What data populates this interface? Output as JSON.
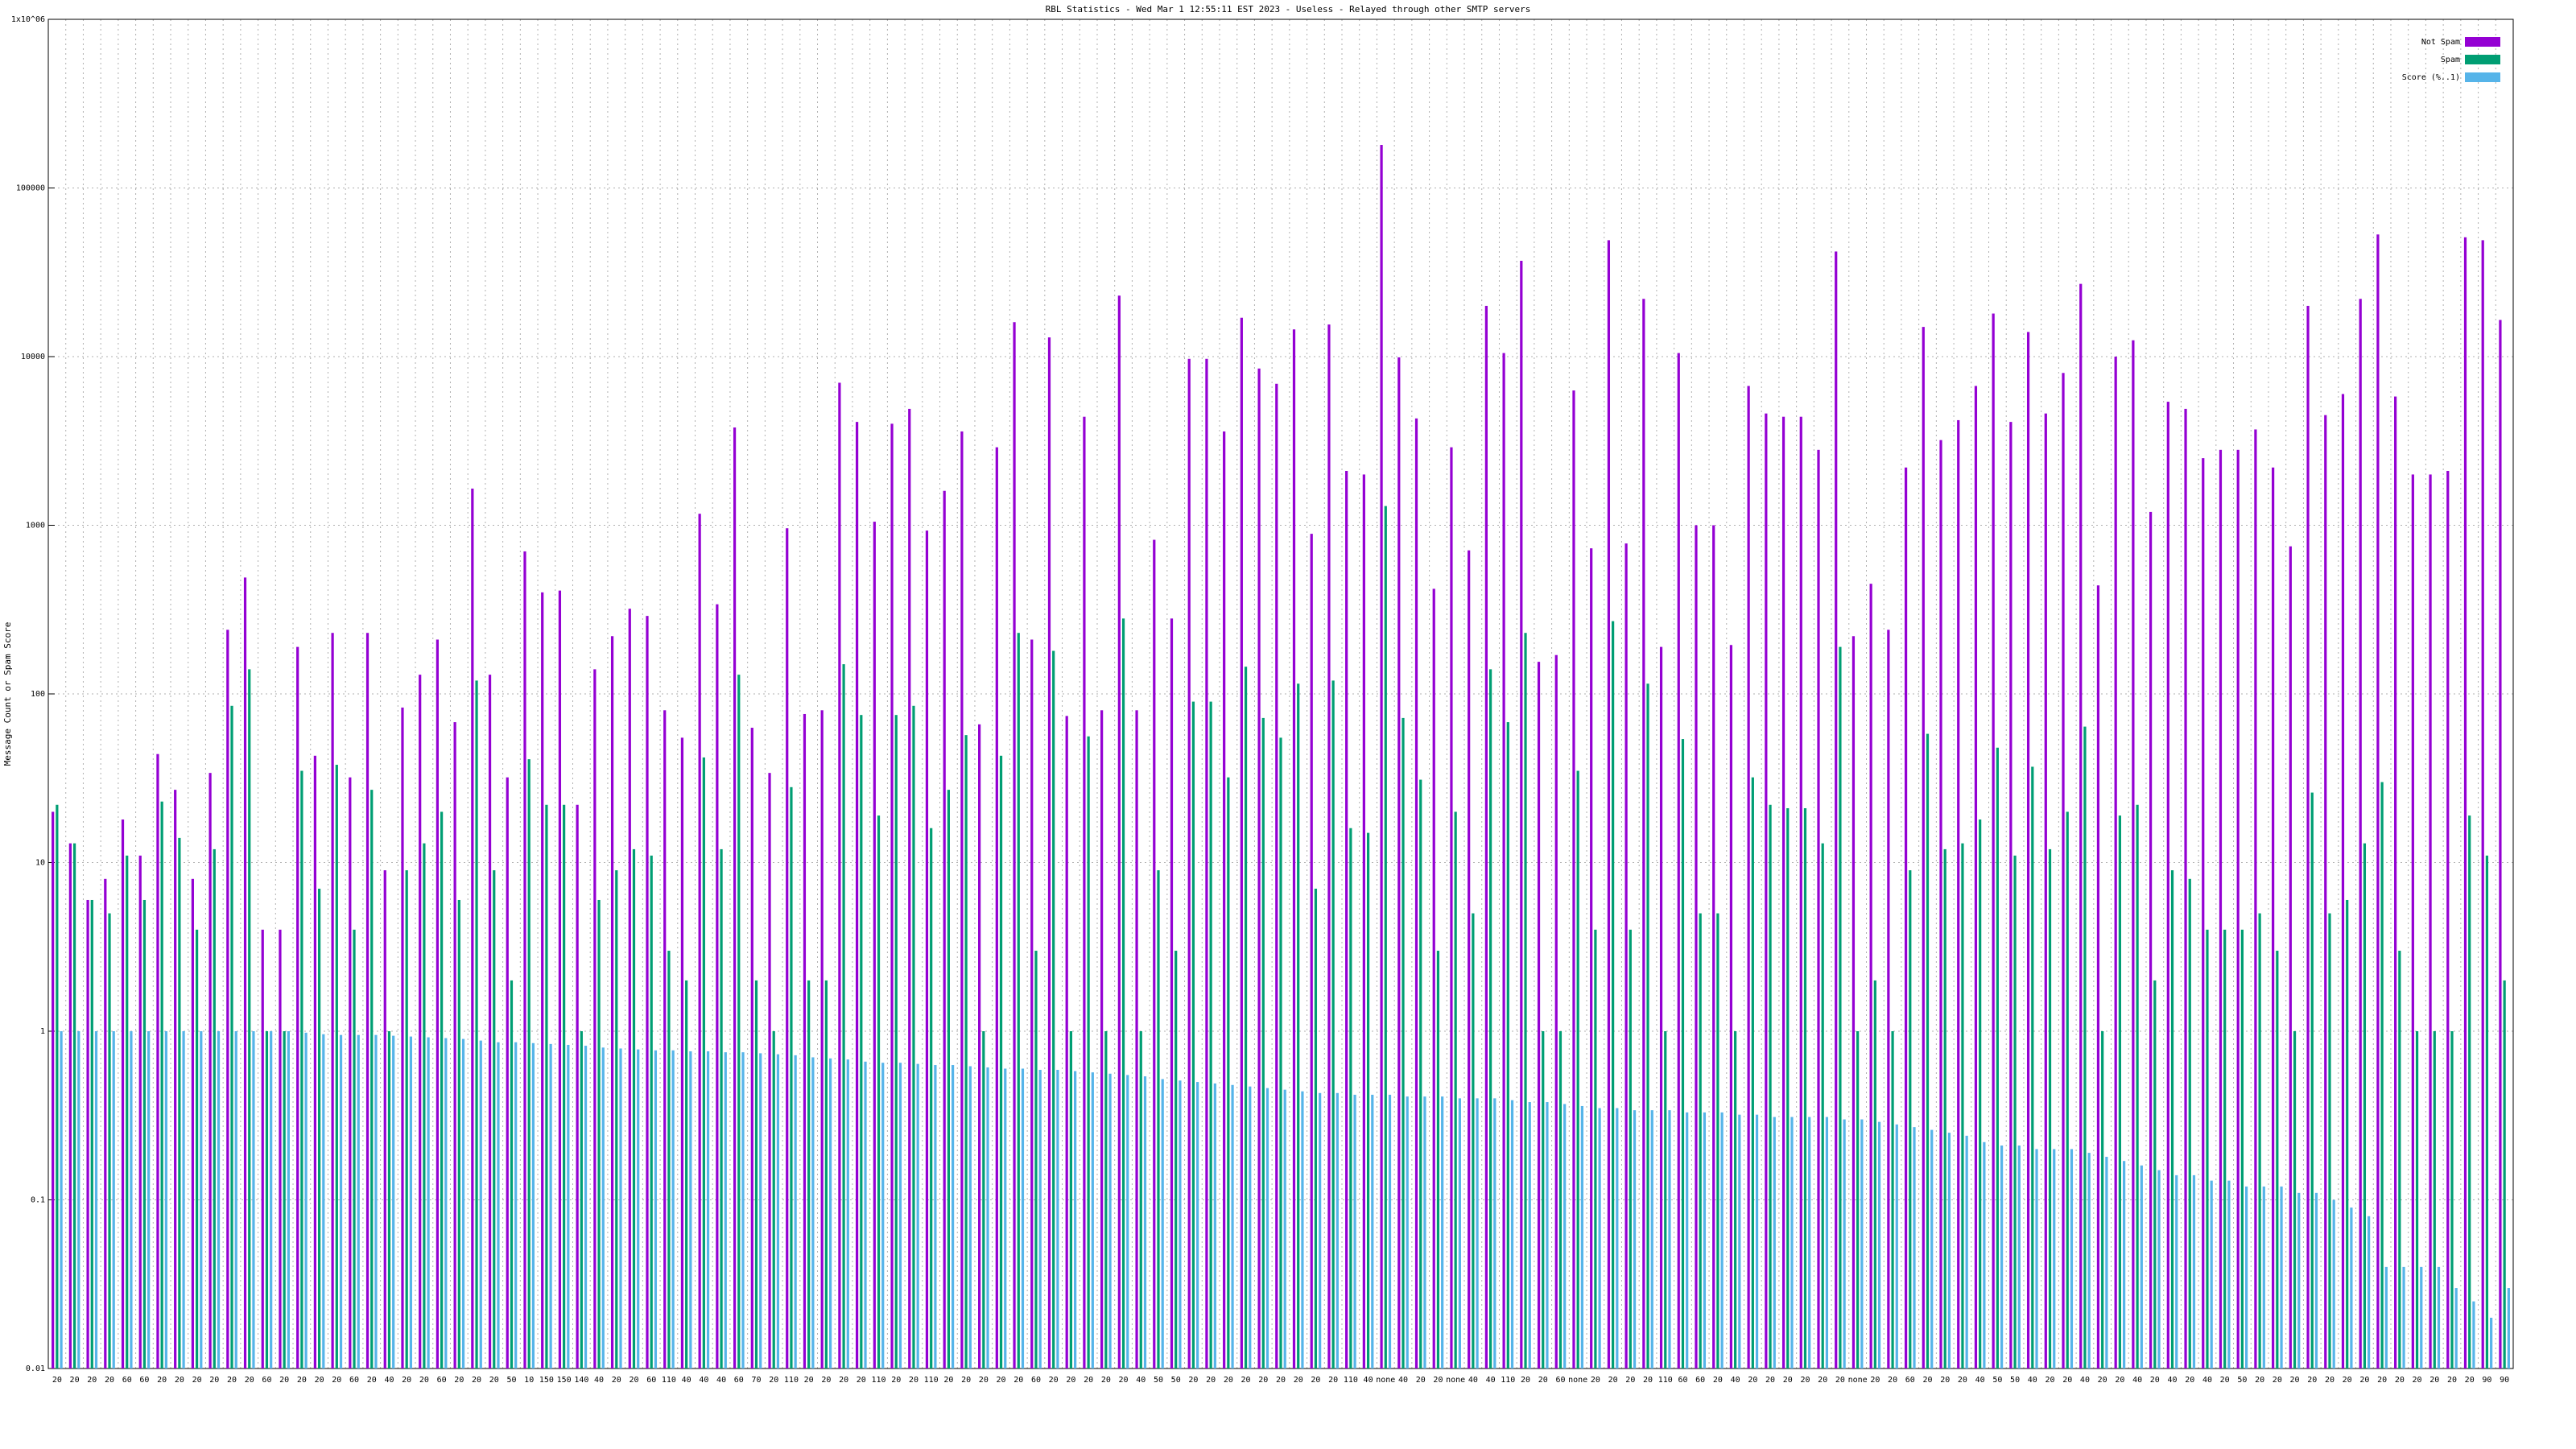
{
  "chart_data": {
    "type": "bar",
    "title": "RBL Statistics - Wed Mar  1 12:55:11 EST 2023 - Useless - Relayed through other SMTP servers",
    "y_label": "Message Count or Spam Score",
    "log_scale": true,
    "grid": true,
    "legend": "top-right",
    "ylim": [
      0.01,
      1000000
    ],
    "yticks": [
      0.01,
      0.1,
      1,
      10,
      100,
      1000,
      10000,
      100000,
      {
        "value": 1000000,
        "label": "1x10^06"
      }
    ],
    "categories": [
      "20",
      "20",
      "20",
      "20",
      "60",
      "60",
      "20",
      "20",
      "20",
      "20",
      "20",
      "20",
      "60",
      "20",
      "20",
      "20",
      "20",
      "60",
      "20",
      "40",
      "20",
      "20",
      "60",
      "20",
      "20",
      "20",
      "50",
      "10",
      "150",
      "150",
      "140",
      "40",
      "20",
      "20",
      "60",
      "110",
      "40",
      "40",
      "40",
      "60",
      "70",
      "20",
      "110",
      "20",
      "20",
      "20",
      "20",
      "110",
      "20",
      "20",
      "110",
      "20",
      "20",
      "20",
      "20",
      "20",
      "60",
      "20",
      "20",
      "20",
      "20",
      "20",
      "40",
      "50",
      "50",
      "20",
      "20",
      "20",
      "20",
      "20",
      "20",
      "20",
      "20",
      "20",
      "110",
      "40",
      "none",
      "40",
      "20",
      "20",
      "none",
      "40",
      "40",
      "110",
      "20",
      "20",
      "60",
      "none",
      "20",
      "20",
      "20",
      "20",
      "110",
      "60",
      "60",
      "20",
      "40",
      "20",
      "20",
      "20",
      "20",
      "20",
      "20",
      "none",
      "20",
      "20",
      "60",
      "20",
      "20",
      "20",
      "40",
      "50",
      "50",
      "40",
      "20",
      "20",
      "40",
      "20",
      "20",
      "40",
      "20",
      "40",
      "20",
      "40",
      "20",
      "50",
      "20",
      "20",
      "20",
      "20",
      "20",
      "20",
      "20",
      "20",
      "20",
      "20",
      "20",
      "20",
      "20",
      "90",
      "90"
    ],
    "series": [
      {
        "name": "Not Spam",
        "color": "#9400d3",
        "values": [
          20,
          13,
          6,
          8,
          18,
          11,
          44,
          27,
          8,
          34,
          240,
          490,
          4,
          4,
          190,
          43,
          230,
          32,
          230,
          9,
          83,
          130,
          210,
          68,
          1650,
          130,
          32,
          700,
          400,
          410,
          22,
          140,
          220,
          320,
          290,
          80,
          55,
          1170,
          340,
          3800,
          63,
          34,
          960,
          76,
          80,
          7000,
          4100,
          1050,
          4000,
          4900,
          930,
          1600,
          3600,
          66,
          2900,
          16000,
          210,
          13000,
          74,
          4400,
          80,
          23000,
          80,
          820,
          280,
          9700,
          9700,
          3600,
          17000,
          8500,
          6900,
          14500,
          890,
          15500,
          2100,
          2000,
          180000,
          9900,
          4300,
          420,
          2900,
          710,
          20000,
          10500,
          37000,
          155,
          170,
          6300,
          730,
          49000,
          780,
          22000,
          190,
          10500,
          1000,
          1000,
          195,
          6700,
          4600,
          4400,
          4400,
          2800,
          42000,
          220,
          450,
          240,
          2200,
          15000,
          3200,
          4200,
          6700,
          18000,
          4100,
          14000,
          4600,
          8000,
          27000,
          440,
          10000,
          12500,
          1200,
          5400,
          4900,
          2500,
          2800,
          2800,
          3700,
          2200,
          750,
          20000,
          4500,
          6000,
          22000,
          53000,
          5800,
          2000,
          2000,
          2100,
          51000,
          49000,
          16500
        ]
      },
      {
        "name": "Spam",
        "color": "#009e73",
        "values": [
          22,
          13,
          6,
          5,
          11,
          6,
          23,
          14,
          4,
          12,
          85,
          140,
          1,
          1,
          35,
          7,
          38,
          4,
          27,
          1,
          9,
          13,
          20,
          6,
          120,
          9,
          2,
          41,
          22,
          22,
          1,
          6,
          9,
          12,
          11,
          3,
          2,
          42,
          12,
          130,
          2,
          1,
          28,
          2,
          2,
          150,
          75,
          19,
          75,
          85,
          16,
          27,
          57,
          1,
          43,
          230,
          3,
          180,
          1,
          56,
          1,
          280,
          1,
          9,
          3,
          90,
          90,
          32,
          145,
          72,
          55,
          115,
          7,
          120,
          16,
          15,
          1300,
          72,
          31,
          3,
          20,
          5,
          140,
          68,
          230,
          1,
          1,
          35,
          4,
          270,
          4,
          115,
          1,
          54,
          5,
          5,
          1,
          32,
          22,
          21,
          21,
          13,
          190,
          1,
          2,
          1,
          9,
          58,
          12,
          13,
          18,
          48,
          11,
          37,
          12,
          20,
          64,
          1,
          19,
          22,
          2,
          9,
          8,
          4,
          4,
          4,
          5,
          3,
          1,
          26,
          5,
          6,
          13,
          30,
          3,
          1,
          1,
          1,
          19,
          11,
          2
        ]
      },
      {
        "name": "Score (%..1)",
        "color": "#56b4e9",
        "values": [
          1,
          1,
          1,
          1,
          1,
          1,
          1,
          1,
          1,
          1,
          1,
          1,
          1,
          1,
          0.98,
          0.96,
          0.95,
          0.95,
          0.95,
          0.94,
          0.93,
          0.92,
          0.91,
          0.9,
          0.88,
          0.86,
          0.86,
          0.85,
          0.84,
          0.83,
          0.82,
          0.8,
          0.79,
          0.78,
          0.77,
          0.77,
          0.76,
          0.76,
          0.75,
          0.75,
          0.74,
          0.73,
          0.72,
          0.7,
          0.69,
          0.68,
          0.66,
          0.65,
          0.65,
          0.64,
          0.63,
          0.63,
          0.62,
          0.61,
          0.6,
          0.6,
          0.59,
          0.59,
          0.58,
          0.57,
          0.56,
          0.55,
          0.54,
          0.52,
          0.51,
          0.5,
          0.49,
          0.48,
          0.47,
          0.46,
          0.45,
          0.44,
          0.43,
          0.43,
          0.42,
          0.42,
          0.42,
          0.41,
          0.41,
          0.41,
          0.4,
          0.4,
          0.4,
          0.39,
          0.38,
          0.38,
          0.37,
          0.36,
          0.35,
          0.35,
          0.34,
          0.34,
          0.34,
          0.33,
          0.33,
          0.33,
          0.32,
          0.32,
          0.31,
          0.31,
          0.31,
          0.31,
          0.3,
          0.3,
          0.29,
          0.28,
          0.27,
          0.26,
          0.25,
          0.24,
          0.22,
          0.21,
          0.21,
          0.2,
          0.2,
          0.2,
          0.19,
          0.18,
          0.17,
          0.16,
          0.15,
          0.14,
          0.14,
          0.13,
          0.13,
          0.12,
          0.12,
          0.12,
          0.11,
          0.11,
          0.1,
          0.09,
          0.08,
          0.04,
          0.04,
          0.04,
          0.04,
          0.03,
          0.025,
          0.02,
          0.03
        ]
      }
    ]
  }
}
